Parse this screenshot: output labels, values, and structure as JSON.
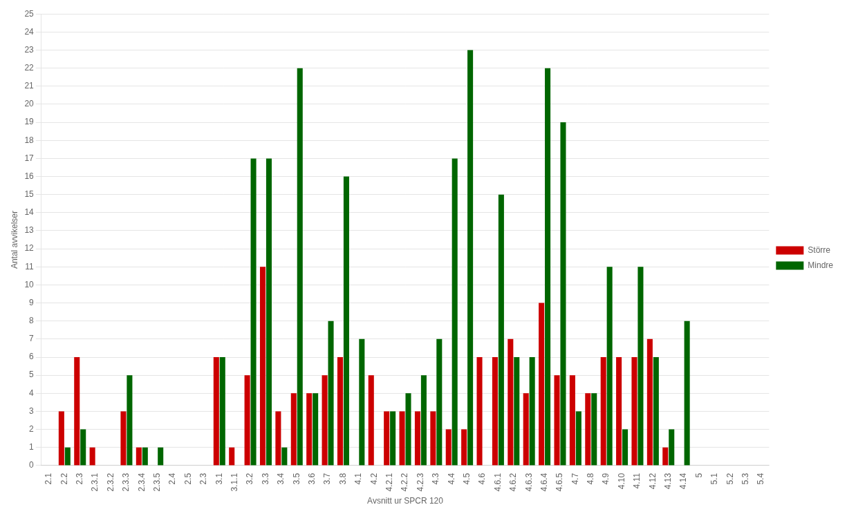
{
  "chart_data": {
    "type": "bar",
    "categories": [
      "2.1",
      "2.2",
      "2.3",
      "2.3.1",
      "2.3.2",
      "2.3.3",
      "2.3.4",
      "2.3.5",
      "2.4",
      "2.5",
      "2.3",
      "3.1",
      "3.1.1",
      "3.2",
      "3.3",
      "3.4",
      "3.5",
      "3.6",
      "3.7",
      "3.8",
      "4.1",
      "4.2",
      "4.2.1",
      "4.2.2",
      "4.2.3",
      "4.3",
      "4.4",
      "4.5",
      "4.6",
      "4.6.1",
      "4.6.2",
      "4.6.3",
      "4.6.4",
      "4.6.5",
      "4.7",
      "4.8",
      "4.9",
      "4.10",
      "4.11",
      "4.12",
      "4.13",
      "4.14",
      "5",
      "5.1",
      "5.2",
      "5.3",
      "5.4"
    ],
    "series": [
      {
        "name": "Större",
        "color": "#CC0000",
        "values": [
          0,
          3,
          6,
          1,
          0,
          3,
          1,
          0,
          0,
          0,
          0,
          6,
          1,
          5,
          11,
          3,
          4,
          4,
          5,
          6,
          0,
          5,
          3,
          3,
          3,
          3,
          2,
          2,
          6,
          6,
          7,
          4,
          9,
          5,
          5,
          4,
          6,
          6,
          6,
          7,
          1,
          0,
          0,
          0,
          0,
          0,
          0
        ]
      },
      {
        "name": "Mindre",
        "color": "#006600",
        "values": [
          0,
          1,
          2,
          0,
          0,
          5,
          1,
          1,
          0,
          0,
          0,
          6,
          0,
          17,
          17,
          1,
          22,
          4,
          8,
          16,
          7,
          0,
          3,
          4,
          5,
          7,
          17,
          23,
          0,
          15,
          6,
          6,
          22,
          19,
          3,
          4,
          11,
          2,
          11,
          6,
          2,
          8,
          0,
          0,
          0,
          0,
          0
        ]
      }
    ],
    "xlabel": "Avsnitt ur SPCR 120",
    "ylabel": "Antal avvikelser",
    "ylim": [
      0,
      25
    ],
    "yticks": [
      0,
      1,
      2,
      3,
      4,
      5,
      6,
      7,
      8,
      9,
      10,
      11,
      12,
      13,
      14,
      15,
      16,
      17,
      18,
      19,
      20,
      21,
      22,
      23,
      24,
      25
    ],
    "grid": true,
    "legend": "right"
  }
}
